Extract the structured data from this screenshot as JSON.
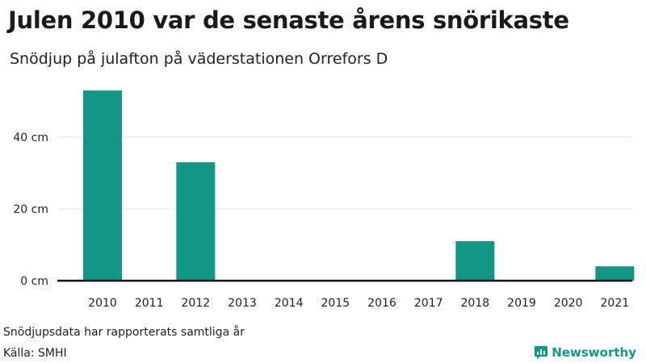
{
  "title": "Julen 2010 var de senaste årens snörikaste",
  "subtitle": "Snödjup på julafton på väderstationen Orrefors D",
  "footer": {
    "note": "Snödjupsdata har rapporterats samtliga år",
    "source": "Källa: SMHI"
  },
  "brand": {
    "name": "Newsworthy",
    "icon": "newsworthy-logo-icon"
  },
  "colors": {
    "bar": "#139685",
    "brand": "#139685",
    "grid": "#dddddd",
    "axis": "#111111"
  },
  "chart_data": {
    "type": "bar",
    "categories": [
      "2010",
      "2011",
      "2012",
      "2013",
      "2014",
      "2015",
      "2016",
      "2017",
      "2018",
      "2019",
      "2020",
      "2021"
    ],
    "values": [
      53,
      0,
      33,
      0,
      0,
      0,
      0,
      0,
      11,
      0,
      0,
      4
    ],
    "ylim": [
      0,
      60
    ],
    "yticks": [
      0,
      20,
      40
    ],
    "ytick_labels": [
      "0 cm",
      "20 cm",
      "40 cm"
    ],
    "grid": true
  }
}
